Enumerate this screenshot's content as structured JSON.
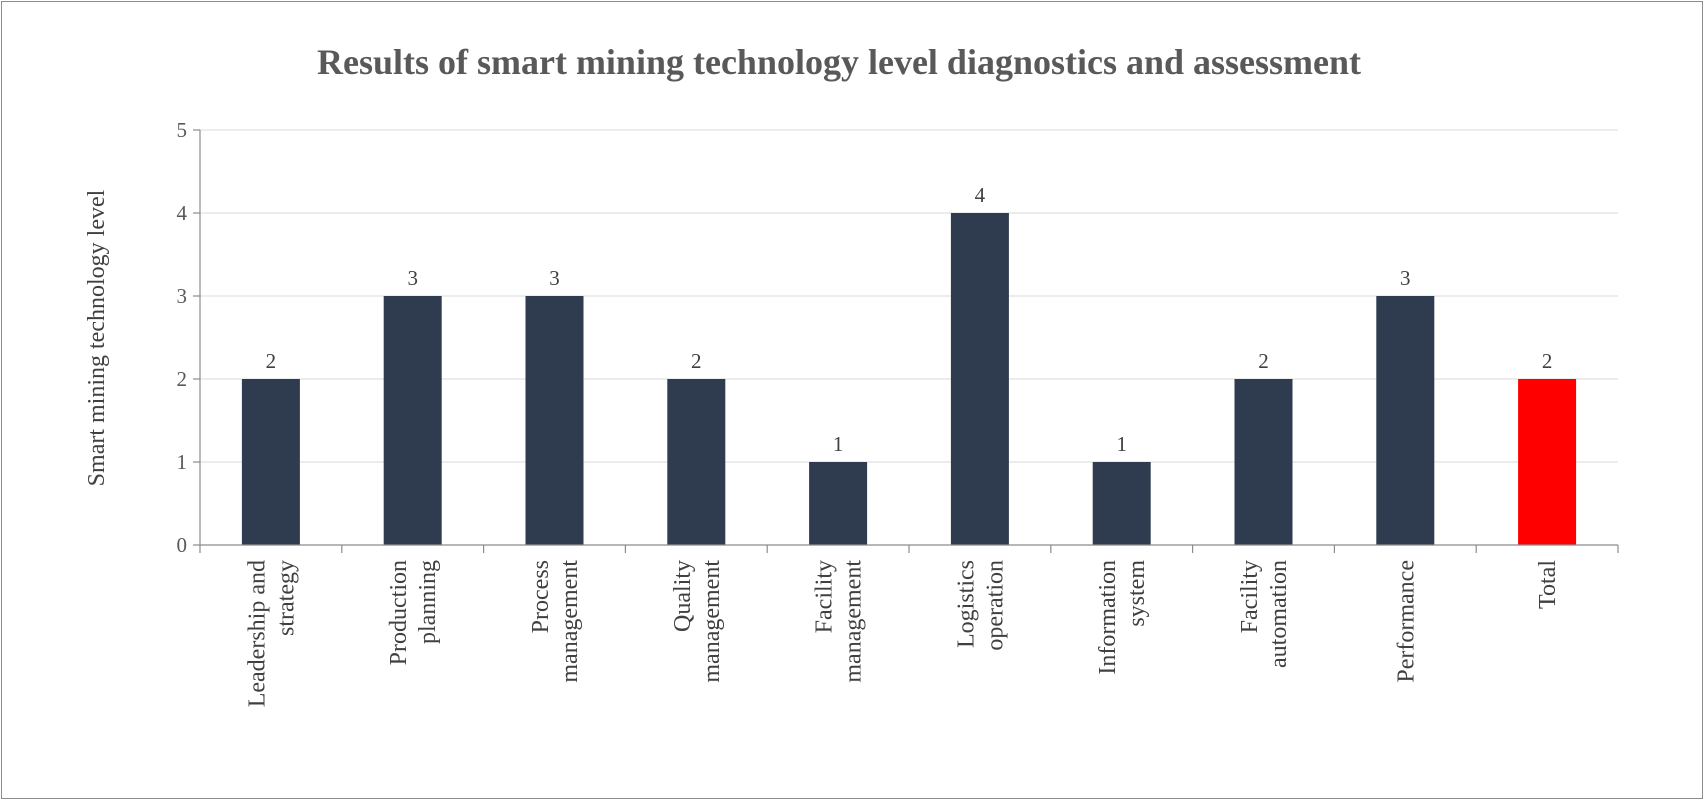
{
  "chart_data": {
    "type": "bar",
    "title": "Results of smart mining technology level diagnostics and assessment",
    "xlabel": "",
    "ylabel": "Smart mining technology level",
    "ylim": [
      0,
      5
    ],
    "yticks": [
      0,
      1,
      2,
      3,
      4,
      5
    ],
    "grid": true,
    "categories": [
      [
        "Leadership and",
        "strategy"
      ],
      [
        "Production",
        "planning"
      ],
      [
        "Process",
        "management"
      ],
      [
        "Quality",
        "management"
      ],
      [
        "Facility",
        "management"
      ],
      [
        "Logistics",
        "operation"
      ],
      [
        "Information",
        "system"
      ],
      [
        "Facility",
        "automation"
      ],
      [
        "Performance"
      ],
      [
        "Total"
      ]
    ],
    "values": [
      2,
      3,
      3,
      2,
      1,
      4,
      1,
      2,
      3,
      2
    ],
    "colors": [
      "#2f3b4e",
      "#2f3b4e",
      "#2f3b4e",
      "#2f3b4e",
      "#2f3b4e",
      "#2f3b4e",
      "#2f3b4e",
      "#2f3b4e",
      "#2f3b4e",
      "#ff0000"
    ]
  }
}
